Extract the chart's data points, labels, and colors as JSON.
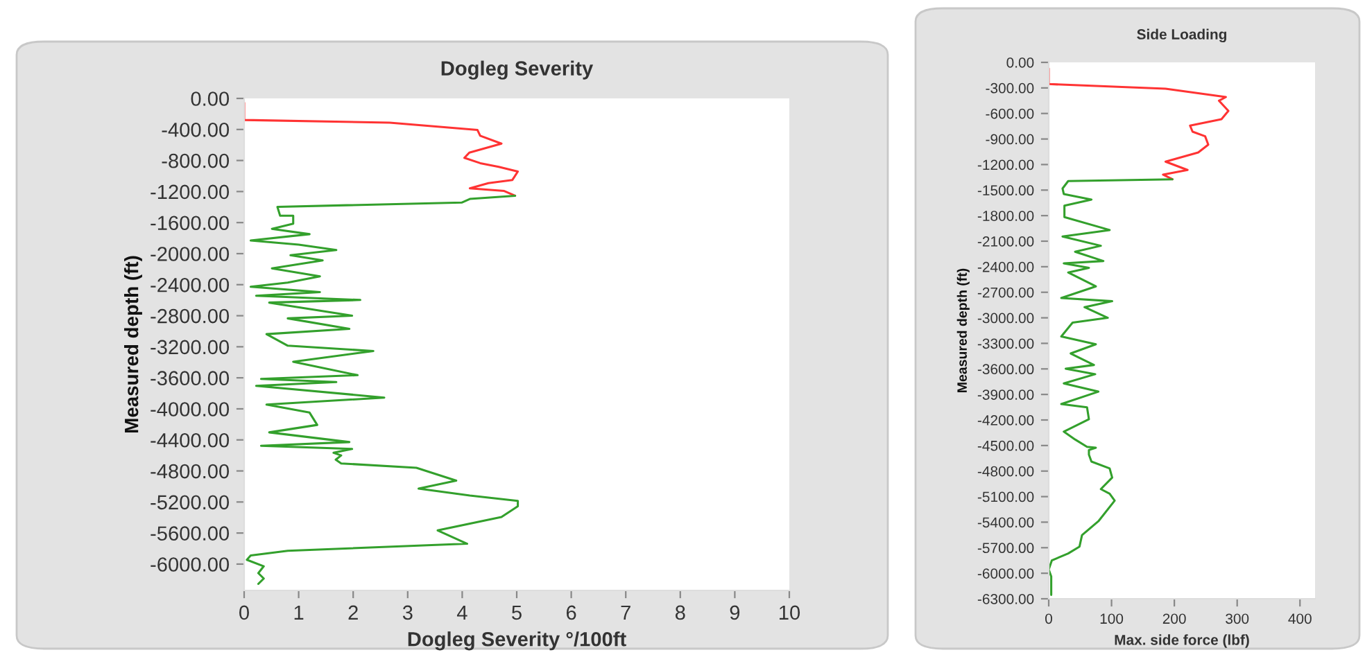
{
  "chart_data": [
    {
      "type": "line",
      "orientation": "horizontal",
      "title": "Dogleg Severity",
      "xlabel": "Dogleg Severity °/100ft",
      "ylabel": "Measured depth (ft)",
      "xlim": [
        0,
        10
      ],
      "xticks": [
        0,
        1,
        2,
        3,
        4,
        5,
        6,
        7,
        8,
        9,
        10
      ],
      "ylim": [
        -6340,
        0
      ],
      "yticks": [
        {
          "value": 0,
          "label": "0.00"
        },
        {
          "value": -400,
          "label": "-400.00"
        },
        {
          "value": -800,
          "label": "-800.00"
        },
        {
          "value": -1200,
          "label": "-1200.00"
        },
        {
          "value": -1600,
          "label": "-1600.00"
        },
        {
          "value": -2000,
          "label": "-2000.00"
        },
        {
          "value": -2400,
          "label": "-2400.00"
        },
        {
          "value": -2800,
          "label": "-2800.00"
        },
        {
          "value": -3200,
          "label": "-3200.00"
        },
        {
          "value": -3600,
          "label": "-3600.00"
        },
        {
          "value": -4000,
          "label": "-4000.00"
        },
        {
          "value": -4400,
          "label": "-4400.00"
        },
        {
          "value": -4800,
          "label": "-4800.00"
        },
        {
          "value": -5200,
          "label": "-5200.00"
        },
        {
          "value": -5600,
          "label": "-5600.00"
        },
        {
          "value": -6000,
          "label": "-6000.00"
        }
      ],
      "grid": false,
      "legend": false,
      "marker": "none",
      "line_style": "solid",
      "series": [
        {
          "color": "#ff3333",
          "x": [
            -55,
            -278,
            -312,
            -407,
            -481,
            -583,
            -698,
            -766,
            -834,
            -881,
            -942,
            -1051,
            -1092,
            -1159,
            -1193,
            -1254
          ],
          "values": [
            0,
            0,
            2.67,
            4.28,
            4.33,
            4.72,
            4.13,
            4.04,
            4.33,
            4.67,
            5.02,
            4.92,
            4.48,
            4.14,
            4.77,
            4.97
          ]
        },
        {
          "color": "#33a02c",
          "x": [
            -1254,
            -1295,
            -1342,
            -1397,
            -1512,
            -1512,
            -1614,
            -1681,
            -1749,
            -1831,
            -1885,
            -1953,
            -2020,
            -2088,
            -2190,
            -2292,
            -2373,
            -2427,
            -2495,
            -2542,
            -2597,
            -2631,
            -2800,
            -2834,
            -2969,
            -3037,
            -3186,
            -3255,
            -3393,
            -3566,
            -3614,
            -3655,
            -3703,
            -3855,
            -3945,
            -4048,
            -4207,
            -4303,
            -4428,
            -4476,
            -4517,
            -4566,
            -4600,
            -4655,
            -4703,
            -4759,
            -4924,
            -5028,
            -5117,
            -5186,
            -5255,
            -5393,
            -5566,
            -5738,
            -5828,
            -5890,
            -5945,
            -6028,
            -6117,
            -6186,
            -6255
          ],
          "values": [
            4.97,
            4.14,
            3.99,
            0.61,
            0.66,
            0.9,
            0.9,
            0.51,
            1.2,
            0.12,
            1.0,
            1.69,
            0.85,
            1.44,
            0.51,
            1.39,
            0.8,
            0.12,
            1.39,
            0.22,
            2.13,
            0.46,
            1.98,
            0.8,
            1.93,
            0.41,
            0.8,
            2.37,
            0.9,
            2.08,
            0.31,
            1.69,
            0.22,
            2.57,
            0.41,
            1.2,
            1.34,
            0.46,
            1.93,
            0.31,
            1.98,
            1.64,
            1.78,
            1.68,
            1.78,
            3.16,
            3.89,
            3.2,
            4.14,
            5.02,
            5.02,
            4.72,
            3.55,
            4.09,
            0.8,
            0.12,
            0.05,
            0.36,
            0.26,
            0.36,
            0.26
          ]
        }
      ]
    },
    {
      "type": "line",
      "orientation": "horizontal",
      "title": "Side Loading",
      "xlabel": "Max. side force (lbf)",
      "ylabel": "Measured depth (ft)",
      "xlim": [
        0,
        424
      ],
      "xticks": [
        0,
        100,
        200,
        300,
        400
      ],
      "ylim": [
        -6300,
        0
      ],
      "yticks": [
        {
          "value": 0,
          "label": "0.00"
        },
        {
          "value": -300,
          "label": "-300.00"
        },
        {
          "value": -600,
          "label": "-600.00"
        },
        {
          "value": -900,
          "label": "-900.00"
        },
        {
          "value": -1200,
          "label": "-1200.00"
        },
        {
          "value": -1500,
          "label": "-1500.00"
        },
        {
          "value": -1800,
          "label": "-1800.00"
        },
        {
          "value": -2100,
          "label": "-2100.00"
        },
        {
          "value": -2400,
          "label": "-2400.00"
        },
        {
          "value": -2700,
          "label": "-2700.00"
        },
        {
          "value": -3000,
          "label": "-3000.00"
        },
        {
          "value": -3300,
          "label": "-3300.00"
        },
        {
          "value": -3600,
          "label": "-3600.00"
        },
        {
          "value": -3900,
          "label": "-3900.00"
        },
        {
          "value": -4200,
          "label": "-4200.00"
        },
        {
          "value": -4500,
          "label": "-4500.00"
        },
        {
          "value": -4800,
          "label": "-4800.00"
        },
        {
          "value": -5100,
          "label": "-5100.00"
        },
        {
          "value": -5400,
          "label": "-5400.00"
        },
        {
          "value": -5700,
          "label": "-5700.00"
        },
        {
          "value": -6000,
          "label": "-6000.00"
        },
        {
          "value": -6300,
          "label": "-6300.00"
        }
      ],
      "grid": false,
      "legend": false,
      "marker": "none",
      "line_style": "solid",
      "series": [
        {
          "color": "#ff3333",
          "x": [
            -71,
            -255,
            -309,
            -407,
            -450,
            -570,
            -667,
            -743,
            -814,
            -868,
            -966,
            -1058,
            -1166,
            -1264,
            -1318,
            -1373
          ],
          "values": [
            0,
            0,
            186,
            282,
            271,
            286,
            275,
            225,
            229,
            249,
            254,
            238,
            186,
            221,
            182,
            197
          ]
        },
        {
          "color": "#33a02c",
          "x": [
            -1373,
            -1394,
            -1481,
            -1546,
            -1611,
            -1682,
            -1817,
            -1969,
            -2045,
            -2154,
            -2224,
            -2333,
            -2360,
            -2414,
            -2468,
            -2631,
            -2767,
            -2805,
            -2875,
            -3000,
            -3057,
            -3219,
            -3311,
            -3419,
            -3554,
            -3597,
            -3662,
            -3770,
            -3867,
            -4013,
            -4051,
            -4191,
            -4337,
            -4429,
            -4515,
            -4526,
            -4553,
            -4607,
            -4688,
            -4769,
            -4877,
            -5012,
            -5066,
            -5147,
            -5390,
            -5552,
            -5687,
            -5768,
            -5849,
            -5957,
            -6038,
            -6254
          ],
          "values": [
            197,
            31,
            22,
            24,
            68,
            25,
            25,
            97,
            22,
            83,
            42,
            87,
            24,
            64,
            31,
            75,
            20,
            101,
            57,
            94,
            38,
            20,
            75,
            35,
            72,
            27,
            74,
            24,
            79,
            20,
            61,
            64,
            24,
            42,
            61,
            75,
            64,
            64,
            68,
            97,
            101,
            83,
            97,
            105,
            79,
            53,
            49,
            31,
            5,
            0,
            4,
            4
          ]
        }
      ]
    }
  ]
}
